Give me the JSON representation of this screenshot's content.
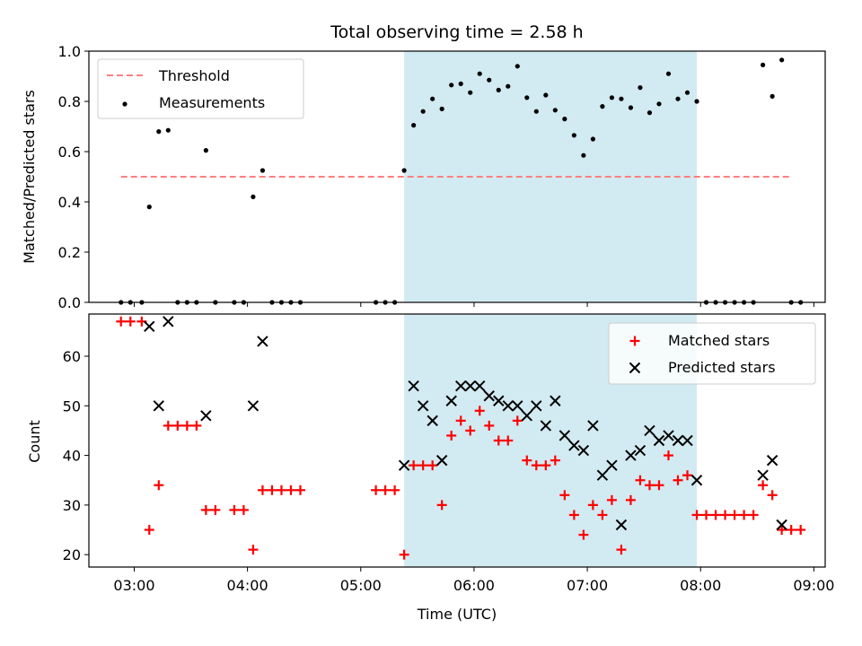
{
  "chart_data": {
    "type": "scatter",
    "title": "Total observing time = 2.58 h",
    "xlabel": "Time (UTC)",
    "x_ticks": [
      "03:00",
      "04:00",
      "05:00",
      "06:00",
      "07:00",
      "08:00",
      "09:00"
    ],
    "xlim": [
      "02:36",
      "09:06"
    ],
    "shaded_interval": [
      "05:23",
      "07:58"
    ],
    "colors": {
      "matched": "#ff0000",
      "predicted": "#000000",
      "shade": "#add8e6",
      "threshold": "#ff7f7f"
    },
    "top": {
      "ylabel": "Matched/Predicted stars",
      "ylim": [
        0,
        1.0
      ],
      "y_ticks": [
        "0.0",
        "0.2",
        "0.4",
        "0.6",
        "0.8",
        "1.0"
      ],
      "legend_position": "upper left",
      "threshold": {
        "name": "Threshold",
        "value": 0.5,
        "x": [
          "02:53",
          "08:47"
        ]
      },
      "series": [
        {
          "name": "Measurements",
          "points": [
            [
              "02:53",
              0.0
            ],
            [
              "02:58",
              0.0
            ],
            [
              "03:04",
              0.0
            ],
            [
              "03:08",
              0.38
            ],
            [
              "03:13",
              0.68
            ],
            [
              "03:18",
              0.685
            ],
            [
              "03:23",
              0.0
            ],
            [
              "03:28",
              0.0
            ],
            [
              "03:33",
              0.0
            ],
            [
              "03:38",
              0.605
            ],
            [
              "03:43",
              0.0
            ],
            [
              "03:53",
              0.0
            ],
            [
              "03:58",
              0.0
            ],
            [
              "04:03",
              0.42
            ],
            [
              "04:08",
              0.525
            ],
            [
              "04:13",
              0.0
            ],
            [
              "04:18",
              0.0
            ],
            [
              "04:23",
              0.0
            ],
            [
              "04:28",
              0.0
            ],
            [
              "05:08",
              0.0
            ],
            [
              "05:13",
              0.0
            ],
            [
              "05:18",
              0.0
            ],
            [
              "05:23",
              0.525
            ],
            [
              "05:28",
              0.705
            ],
            [
              "05:33",
              0.76
            ],
            [
              "05:38",
              0.81
            ],
            [
              "05:43",
              0.77
            ],
            [
              "05:48",
              0.865
            ],
            [
              "05:53",
              0.87
            ],
            [
              "05:58",
              0.835
            ],
            [
              "06:03",
              0.91
            ],
            [
              "06:08",
              0.885
            ],
            [
              "06:13",
              0.845
            ],
            [
              "06:18",
              0.86
            ],
            [
              "06:23",
              0.94
            ],
            [
              "06:28",
              0.815
            ],
            [
              "06:33",
              0.76
            ],
            [
              "06:38",
              0.825
            ],
            [
              "06:43",
              0.765
            ],
            [
              "06:48",
              0.73
            ],
            [
              "06:53",
              0.665
            ],
            [
              "06:58",
              0.585
            ],
            [
              "07:03",
              0.65
            ],
            [
              "07:08",
              0.78
            ],
            [
              "07:13",
              0.815
            ],
            [
              "07:18",
              0.81
            ],
            [
              "07:23",
              0.775
            ],
            [
              "07:28",
              0.855
            ],
            [
              "07:33",
              0.755
            ],
            [
              "07:38",
              0.79
            ],
            [
              "07:43",
              0.91
            ],
            [
              "07:48",
              0.81
            ],
            [
              "07:53",
              0.835
            ],
            [
              "07:58",
              0.8
            ],
            [
              "08:03",
              0.0
            ],
            [
              "08:08",
              0.0
            ],
            [
              "08:13",
              0.0
            ],
            [
              "08:18",
              0.0
            ],
            [
              "08:23",
              0.0
            ],
            [
              "08:28",
              0.0
            ],
            [
              "08:33",
              0.945
            ],
            [
              "08:38",
              0.82
            ],
            [
              "08:43",
              0.965
            ],
            [
              "08:48",
              0.0
            ],
            [
              "08:53",
              0.0
            ]
          ]
        }
      ]
    },
    "bottom": {
      "ylabel": "Count",
      "ylim": [
        17.5,
        68.5
      ],
      "y_ticks": [
        "20",
        "30",
        "40",
        "50",
        "60"
      ],
      "legend_position": "upper right",
      "series": [
        {
          "name": "Matched stars",
          "marker": "+",
          "points": [
            [
              "02:53",
              67
            ],
            [
              "02:58",
              67
            ],
            [
              "03:04",
              67
            ],
            [
              "03:08",
              25
            ],
            [
              "03:13",
              34
            ],
            [
              "03:18",
              46
            ],
            [
              "03:23",
              46
            ],
            [
              "03:28",
              46
            ],
            [
              "03:33",
              46
            ],
            [
              "03:38",
              29
            ],
            [
              "03:43",
              29
            ],
            [
              "03:53",
              29
            ],
            [
              "03:58",
              29
            ],
            [
              "04:03",
              21
            ],
            [
              "04:08",
              33
            ],
            [
              "04:13",
              33
            ],
            [
              "04:18",
              33
            ],
            [
              "04:23",
              33
            ],
            [
              "04:28",
              33
            ],
            [
              "05:08",
              33
            ],
            [
              "05:13",
              33
            ],
            [
              "05:18",
              33
            ],
            [
              "05:23",
              20
            ],
            [
              "05:28",
              38
            ],
            [
              "05:33",
              38
            ],
            [
              "05:38",
              38
            ],
            [
              "05:43",
              30
            ],
            [
              "05:48",
              44
            ],
            [
              "05:53",
              47
            ],
            [
              "05:58",
              45
            ],
            [
              "06:03",
              49
            ],
            [
              "06:08",
              46
            ],
            [
              "06:13",
              43
            ],
            [
              "06:18",
              43
            ],
            [
              "06:23",
              47
            ],
            [
              "06:28",
              39
            ],
            [
              "06:33",
              38
            ],
            [
              "06:38",
              38
            ],
            [
              "06:43",
              39
            ],
            [
              "06:48",
              32
            ],
            [
              "06:53",
              28
            ],
            [
              "06:58",
              24
            ],
            [
              "07:03",
              30
            ],
            [
              "07:08",
              28
            ],
            [
              "07:13",
              31
            ],
            [
              "07:18",
              21
            ],
            [
              "07:23",
              31
            ],
            [
              "07:28",
              35
            ],
            [
              "07:33",
              34
            ],
            [
              "07:38",
              34
            ],
            [
              "07:43",
              40
            ],
            [
              "07:48",
              35
            ],
            [
              "07:53",
              36
            ],
            [
              "07:58",
              28
            ],
            [
              "08:03",
              28
            ],
            [
              "08:08",
              28
            ],
            [
              "08:13",
              28
            ],
            [
              "08:18",
              28
            ],
            [
              "08:23",
              28
            ],
            [
              "08:28",
              28
            ],
            [
              "08:33",
              34
            ],
            [
              "08:38",
              32
            ],
            [
              "08:43",
              25
            ],
            [
              "08:48",
              25
            ],
            [
              "08:53",
              25
            ]
          ]
        },
        {
          "name": "Predicted stars",
          "marker": "x",
          "points": [
            [
              "03:08",
              66
            ],
            [
              "03:13",
              50
            ],
            [
              "03:18",
              67
            ],
            [
              "03:38",
              48
            ],
            [
              "04:03",
              50
            ],
            [
              "04:08",
              63
            ],
            [
              "05:23",
              38
            ],
            [
              "05:28",
              54
            ],
            [
              "05:33",
              50
            ],
            [
              "05:38",
              47
            ],
            [
              "05:43",
              39
            ],
            [
              "05:48",
              51
            ],
            [
              "05:53",
              54
            ],
            [
              "05:58",
              54
            ],
            [
              "06:03",
              54
            ],
            [
              "06:08",
              52
            ],
            [
              "06:13",
              51
            ],
            [
              "06:18",
              50
            ],
            [
              "06:23",
              50
            ],
            [
              "06:28",
              48
            ],
            [
              "06:33",
              50
            ],
            [
              "06:38",
              46
            ],
            [
              "06:43",
              51
            ],
            [
              "06:48",
              44
            ],
            [
              "06:53",
              42
            ],
            [
              "06:58",
              41
            ],
            [
              "07:03",
              46
            ],
            [
              "07:08",
              36
            ],
            [
              "07:13",
              38
            ],
            [
              "07:18",
              26
            ],
            [
              "07:23",
              40
            ],
            [
              "07:28",
              41
            ],
            [
              "07:33",
              45
            ],
            [
              "07:38",
              43
            ],
            [
              "07:43",
              44
            ],
            [
              "07:48",
              43
            ],
            [
              "07:53",
              43
            ],
            [
              "07:58",
              35
            ],
            [
              "08:33",
              36
            ],
            [
              "08:38",
              39
            ],
            [
              "08:43",
              26
            ]
          ]
        }
      ]
    }
  }
}
